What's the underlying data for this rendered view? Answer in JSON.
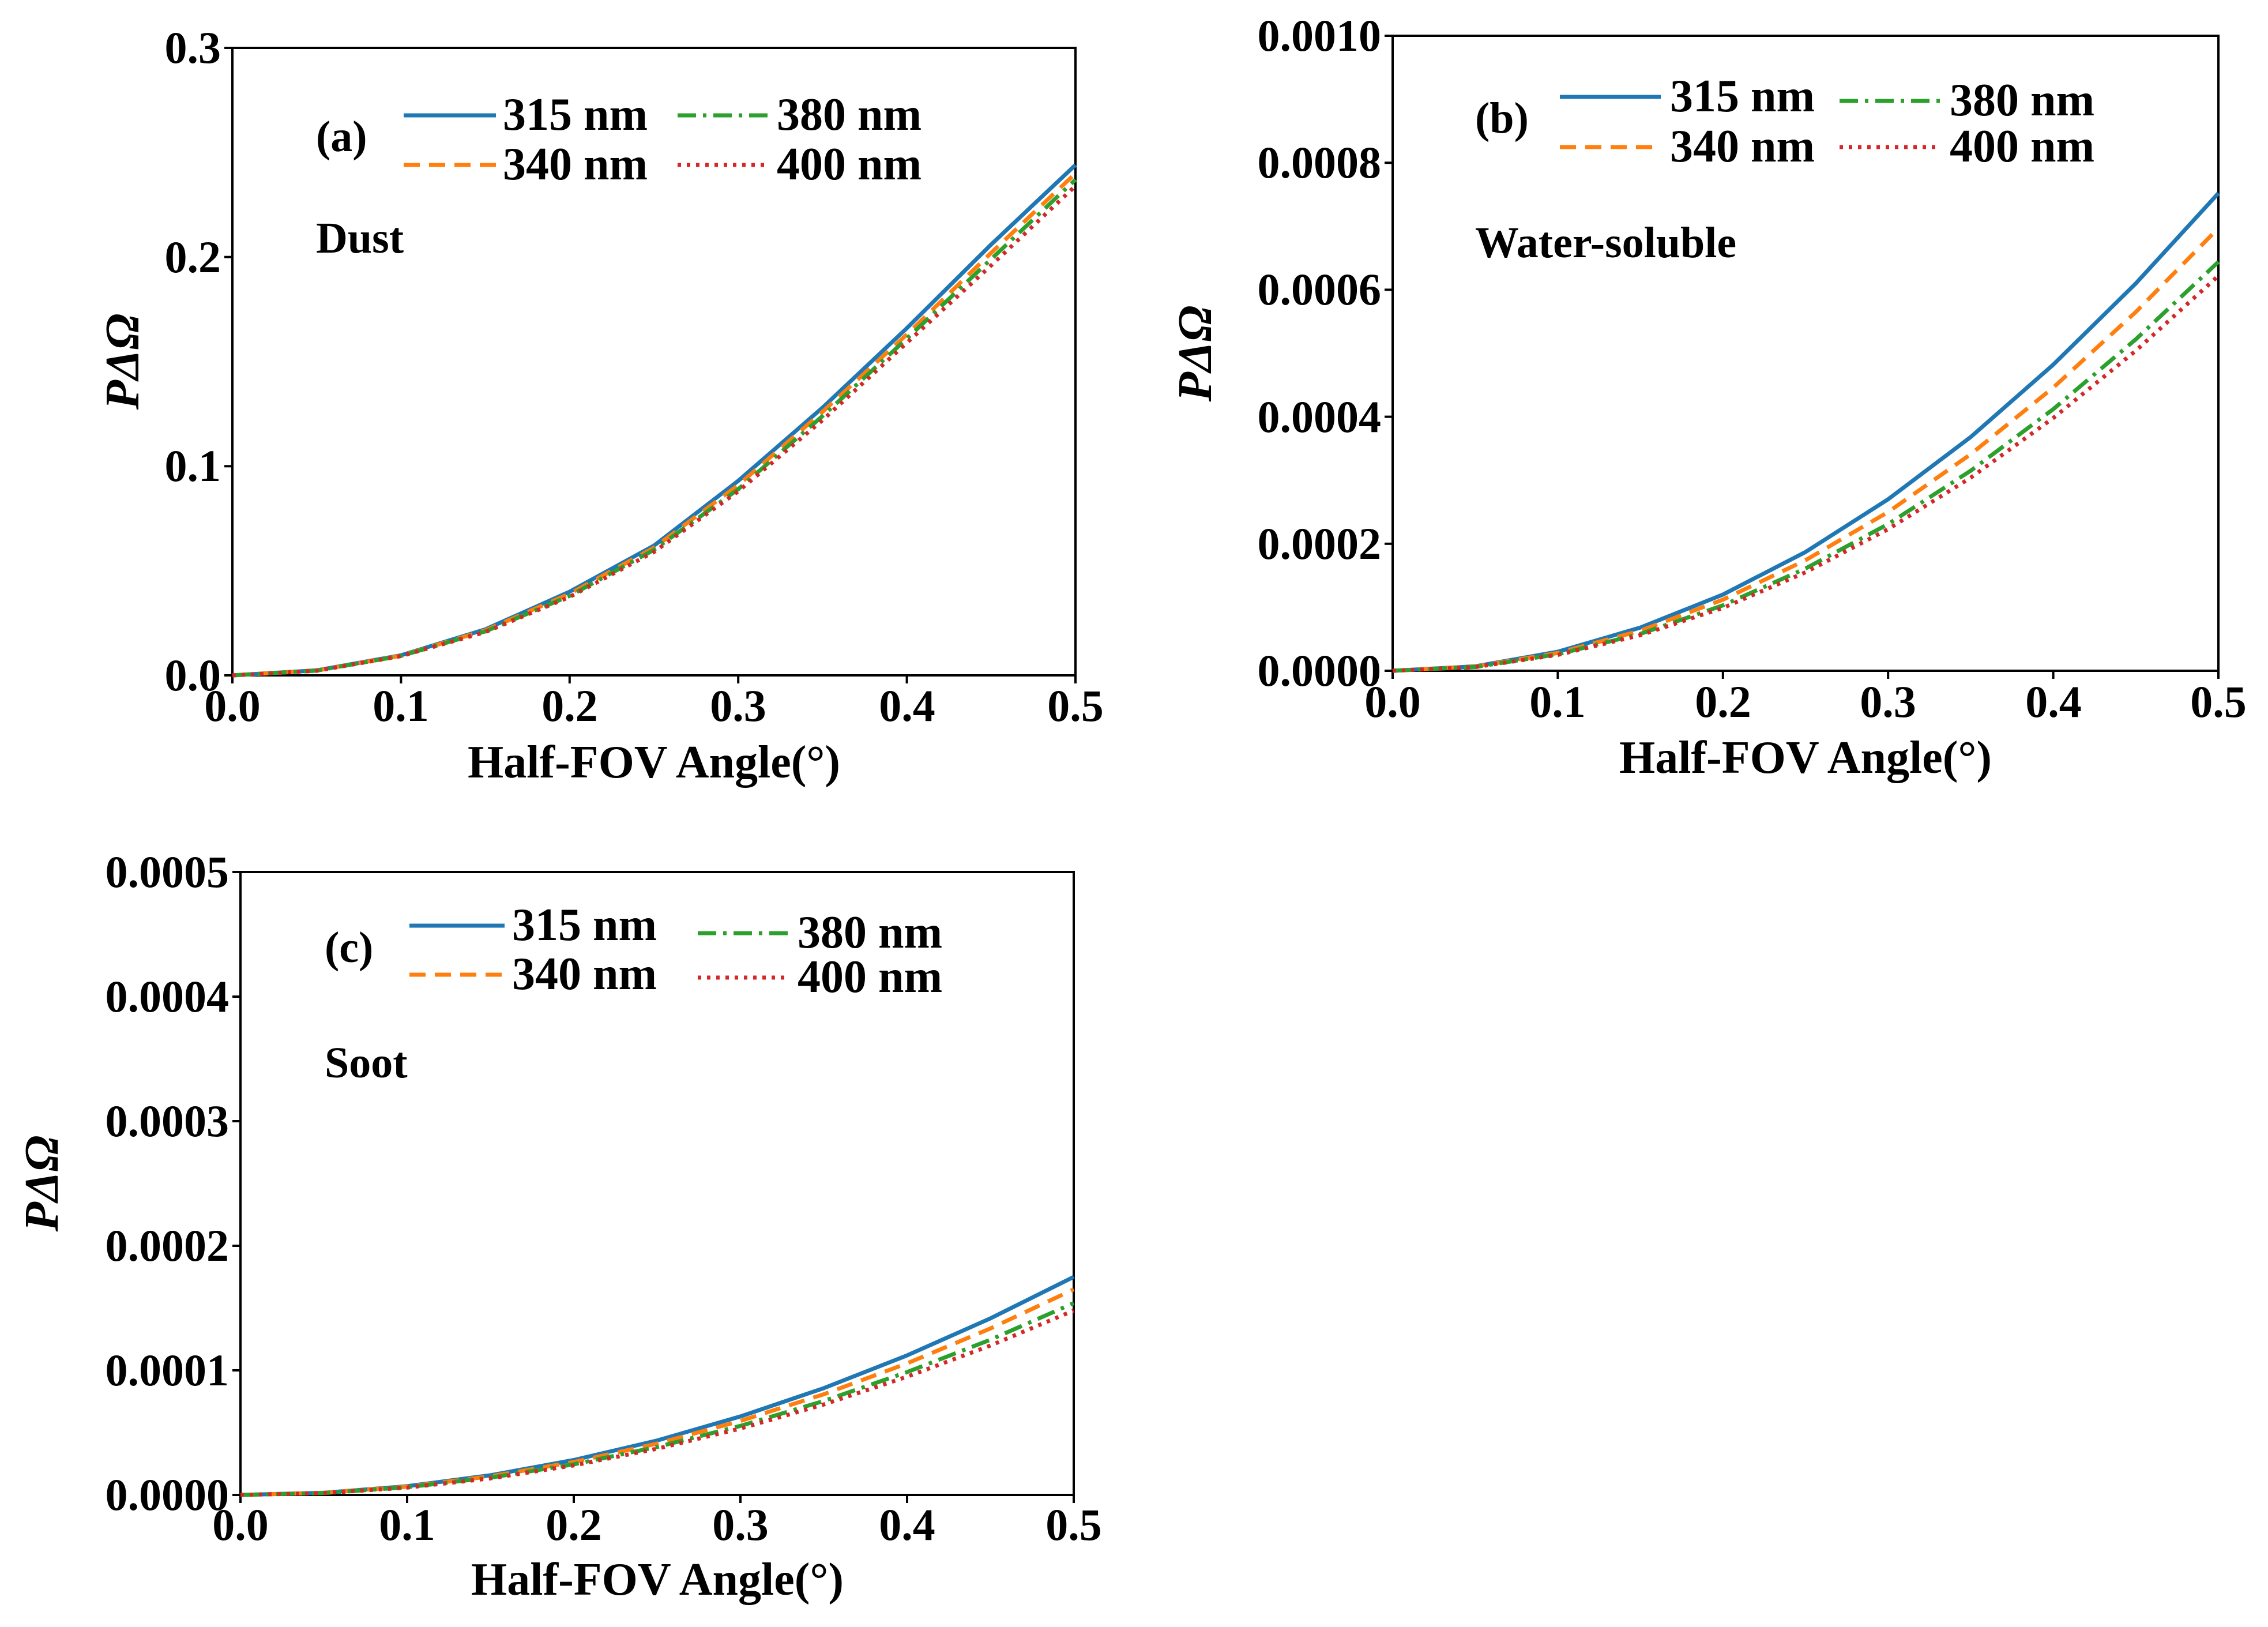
{
  "figure": {
    "x_values": [
      0.0,
      0.05,
      0.1,
      0.15,
      0.2,
      0.25,
      0.3,
      0.35,
      0.4,
      0.45,
      0.5
    ]
  },
  "chart_data": [
    {
      "type": "line",
      "panel": "(a)",
      "annotation": "Dust",
      "title": "",
      "xlabel": "Half-FOV Angle(°)",
      "ylabel": "PΔΩ",
      "xlim": [
        0,
        0.5
      ],
      "ylim": [
        0,
        0.3
      ],
      "xticks": [
        "0.0",
        "0.1",
        "0.2",
        "0.3",
        "0.4",
        "0.5"
      ],
      "yticks": [
        "0.0",
        "0.1",
        "0.2",
        "0.3"
      ],
      "legend_position": "top-right",
      "series": [
        {
          "name": "315 nm",
          "color": "#1f77b4",
          "dash": "solid",
          "values": [
            0.0,
            0.0024,
            0.0096,
            0.022,
            0.04,
            0.062,
            0.093,
            0.128,
            0.166,
            0.206,
            0.244
          ]
        },
        {
          "name": "340 nm",
          "color": "#ff7f0e",
          "dash": "dashed",
          "values": [
            0.0,
            0.0023,
            0.0094,
            0.0215,
            0.039,
            0.061,
            0.091,
            0.126,
            0.163,
            0.202,
            0.24
          ]
        },
        {
          "name": "380 nm",
          "color": "#2ca02c",
          "dash": "dashdot",
          "values": [
            0.0,
            0.0023,
            0.0093,
            0.021,
            0.038,
            0.06,
            0.089,
            0.124,
            0.161,
            0.199,
            0.237
          ]
        },
        {
          "name": "400 nm",
          "color": "#d62728",
          "dash": "dotted",
          "values": [
            0.0,
            0.0022,
            0.0092,
            0.0207,
            0.0375,
            0.059,
            0.088,
            0.122,
            0.159,
            0.196,
            0.234
          ]
        }
      ]
    },
    {
      "type": "line",
      "panel": "(b)",
      "annotation": "Water-soluble",
      "title": "",
      "xlabel": "Half-FOV Angle(°)",
      "ylabel": "PΔΩ",
      "xlim": [
        0,
        0.5
      ],
      "ylim": [
        0,
        0.001
      ],
      "xticks": [
        "0.0",
        "0.1",
        "0.2",
        "0.3",
        "0.4",
        "0.5"
      ],
      "yticks": [
        "0.0000",
        "0.0002",
        "0.0004",
        "0.0006",
        "0.0008",
        "0.0010"
      ],
      "legend_position": "top-right",
      "series": [
        {
          "name": "315 nm",
          "color": "#1f77b4",
          "dash": "solid",
          "values": [
            0.0,
            7e-06,
            3e-05,
            6.8e-05,
            0.00012,
            0.000187,
            0.00027,
            0.000368,
            0.000482,
            0.00061,
            0.000752
          ]
        },
        {
          "name": "340 nm",
          "color": "#ff7f0e",
          "dash": "dashed",
          "values": [
            0.0,
            6.5e-06,
            2.8e-05,
            6.3e-05,
            0.000112,
            0.000174,
            0.00025,
            0.000341,
            0.000446,
            0.000565,
            0.000697
          ]
        },
        {
          "name": "380 nm",
          "color": "#2ca02c",
          "dash": "dashdot",
          "values": [
            0.0,
            6e-06,
            2.6e-05,
            5.8e-05,
            0.000103,
            0.000161,
            0.000231,
            0.000315,
            0.000412,
            0.000522,
            0.000644
          ]
        },
        {
          "name": "400 nm",
          "color": "#d62728",
          "dash": "dotted",
          "values": [
            0.0,
            5.8e-06,
            2.5e-05,
            5.6e-05,
            9.9e-05,
            0.000155,
            0.000223,
            0.000304,
            0.000398,
            0.000504,
            0.000622
          ]
        }
      ]
    },
    {
      "type": "line",
      "panel": "(c)",
      "annotation": "Soot",
      "title": "",
      "xlabel": "Half-FOV Angle(°)",
      "ylabel": "PΔΩ",
      "xlim": [
        0,
        0.5
      ],
      "ylim": [
        0,
        0.0005
      ],
      "xticks": [
        "0.0",
        "0.1",
        "0.2",
        "0.3",
        "0.4",
        "0.5"
      ],
      "yticks": [
        "0.0000",
        "0.0001",
        "0.0002",
        "0.0003",
        "0.0004",
        "0.0005"
      ],
      "legend_position": "top-right",
      "series": [
        {
          "name": "315 nm",
          "color": "#1f77b4",
          "dash": "solid",
          "values": [
            0.0,
            1.7e-06,
            7e-06,
            1.58e-05,
            2.8e-05,
            4.37e-05,
            6.3e-05,
            8.57e-05,
            0.000112,
            0.0001417,
            0.000175
          ]
        },
        {
          "name": "340 nm",
          "color": "#ff7f0e",
          "dash": "dashed",
          "values": [
            0.0,
            1.6e-06,
            6.6e-06,
            1.49e-05,
            2.64e-05,
            4.12e-05,
            5.94e-05,
            8.08e-05,
            0.0001056,
            0.0001336,
            0.000165
          ]
        },
        {
          "name": "380 nm",
          "color": "#2ca02c",
          "dash": "dashdot",
          "values": [
            0.0,
            1.5e-06,
            6.2e-06,
            1.39e-05,
            2.46e-05,
            3.85e-05,
            5.54e-05,
            7.54e-05,
            9.86e-05,
            0.0001246,
            0.000154
          ]
        },
        {
          "name": "400 nm",
          "color": "#d62728",
          "dash": "dotted",
          "values": [
            0.0,
            1.5e-06,
            5.9e-06,
            1.33e-05,
            2.37e-05,
            3.71e-05,
            5.33e-05,
            7.26e-05,
            9.49e-05,
            0.0001199,
            0.000148
          ]
        }
      ]
    }
  ]
}
